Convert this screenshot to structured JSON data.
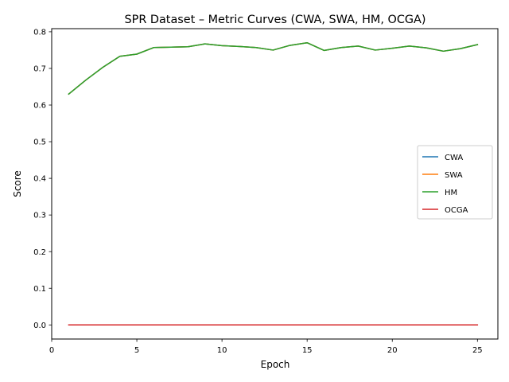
{
  "chart_data": {
    "type": "line",
    "title": "SPR Dataset – Metric Curves (CWA, SWA, HM, OCGA)",
    "xlabel": "Epoch",
    "ylabel": "Score",
    "xlim": [
      0,
      26.2
    ],
    "ylim": [
      -0.0385,
      0.8085
    ],
    "xticks": [
      0,
      5,
      10,
      15,
      20,
      25
    ],
    "yticks": [
      0.0,
      0.1,
      0.2,
      0.3,
      0.4,
      0.5,
      0.6,
      0.7,
      0.8
    ],
    "xtick_labels": [
      "0",
      "5",
      "10",
      "15",
      "20",
      "25"
    ],
    "ytick_labels": [
      "0.0",
      "0.1",
      "0.2",
      "0.3",
      "0.4",
      "0.5",
      "0.6",
      "0.7",
      "0.8"
    ],
    "grid": false,
    "legend_position": "center-right",
    "x": [
      1,
      2,
      3,
      4,
      5,
      6,
      7,
      8,
      9,
      10,
      11,
      12,
      13,
      14,
      15,
      16,
      17,
      18,
      19,
      20,
      21,
      22,
      23,
      24,
      25
    ],
    "series": [
      {
        "name": "CWA",
        "color": "#1f77b4",
        "values": [
          0.63,
          0.668,
          0.703,
          0.733,
          0.739,
          0.757,
          0.758,
          0.759,
          0.767,
          0.762,
          0.76,
          0.757,
          0.75,
          0.763,
          0.77,
          0.749,
          0.757,
          0.761,
          0.75,
          0.755,
          0.761,
          0.756,
          0.747,
          0.754,
          0.765
        ]
      },
      {
        "name": "SWA",
        "color": "#ff7f0e",
        "values": [
          0.63,
          0.668,
          0.703,
          0.733,
          0.739,
          0.757,
          0.758,
          0.759,
          0.767,
          0.762,
          0.76,
          0.757,
          0.75,
          0.763,
          0.77,
          0.749,
          0.757,
          0.761,
          0.75,
          0.755,
          0.761,
          0.756,
          0.747,
          0.754,
          0.765
        ]
      },
      {
        "name": "HM",
        "color": "#2ca02c",
        "values": [
          0.63,
          0.668,
          0.703,
          0.733,
          0.739,
          0.757,
          0.758,
          0.759,
          0.767,
          0.762,
          0.76,
          0.757,
          0.75,
          0.763,
          0.77,
          0.749,
          0.757,
          0.761,
          0.75,
          0.755,
          0.761,
          0.756,
          0.747,
          0.754,
          0.765
        ]
      },
      {
        "name": "OCGA",
        "color": "#d62728",
        "values": [
          0.0,
          0.0,
          0.0,
          0.0,
          0.0,
          0.0,
          0.0,
          0.0,
          0.0,
          0.0,
          0.0,
          0.0,
          0.0,
          0.0,
          0.0,
          0.0,
          0.0,
          0.0,
          0.0,
          0.0,
          0.0,
          0.0,
          0.0,
          0.0,
          0.0
        ]
      }
    ]
  }
}
